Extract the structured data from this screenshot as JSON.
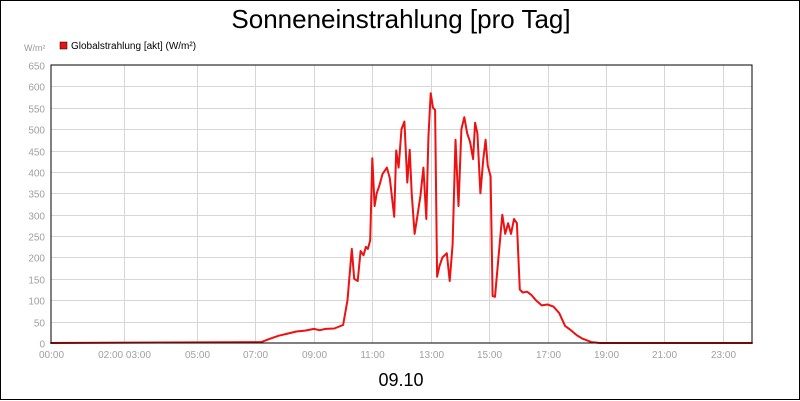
{
  "chart_data": {
    "type": "line",
    "title": "Sonneneinstrahlung [pro Tag]",
    "ylabel": "W/m²",
    "xlabel": "09.10",
    "ylim": [
      0,
      650
    ],
    "xlim": [
      0,
      24
    ],
    "yticks": [
      0,
      50,
      100,
      150,
      200,
      250,
      300,
      350,
      400,
      450,
      500,
      550,
      600,
      650
    ],
    "xticks": [
      {
        "x": 0,
        "label": "00:00"
      },
      {
        "x": 2.5,
        "label": "02:00 03:00"
      },
      {
        "x": 5,
        "label": "05:00"
      },
      {
        "x": 7,
        "label": "07:00"
      },
      {
        "x": 9,
        "label": "09:00"
      },
      {
        "x": 11,
        "label": "11:00"
      },
      {
        "x": 13,
        "label": "13:00"
      },
      {
        "x": 15,
        "label": "15:00"
      },
      {
        "x": 17,
        "label": "17:00"
      },
      {
        "x": 19,
        "label": "19:00"
      },
      {
        "x": 21,
        "label": "21:00"
      },
      {
        "x": 23,
        "label": "23:00"
      }
    ],
    "grid": true,
    "legend_position": "top-left",
    "series": [
      {
        "name": "Globalstrahlung [akt] (W/m²)",
        "color": "#ee1111",
        "x": [
          0,
          7.2,
          7.5,
          7.8,
          8.1,
          8.4,
          8.7,
          9.0,
          9.2,
          9.4,
          9.7,
          10.0,
          10.15,
          10.3,
          10.38,
          10.5,
          10.6,
          10.7,
          10.78,
          10.85,
          10.93,
          11.0,
          11.08,
          11.15,
          11.25,
          11.35,
          11.5,
          11.6,
          11.75,
          11.82,
          11.9,
          12.0,
          12.1,
          12.2,
          12.28,
          12.35,
          12.45,
          12.55,
          12.65,
          12.75,
          12.85,
          12.92,
          13.0,
          13.08,
          13.15,
          13.22,
          13.3,
          13.4,
          13.55,
          13.65,
          13.75,
          13.85,
          13.95,
          14.05,
          14.15,
          14.25,
          14.35,
          14.45,
          14.52,
          14.6,
          14.7,
          14.8,
          14.88,
          14.95,
          15.05,
          15.12,
          15.2,
          15.3,
          15.45,
          15.55,
          15.65,
          15.75,
          15.85,
          15.95,
          16.05,
          16.15,
          16.3,
          16.45,
          16.6,
          16.8,
          17.0,
          17.2,
          17.4,
          17.6,
          17.8,
          18.0,
          18.2,
          18.5,
          18.8,
          19.0,
          24
        ],
        "values": [
          0,
          2,
          10,
          17,
          22,
          27,
          29,
          33,
          30,
          33,
          34,
          42,
          100,
          220,
          150,
          145,
          215,
          205,
          225,
          220,
          240,
          432,
          320,
          350,
          370,
          395,
          410,
          385,
          295,
          450,
          410,
          500,
          518,
          375,
          452,
          350,
          255,
          300,
          345,
          410,
          290,
          480,
          584,
          550,
          545,
          155,
          180,
          200,
          210,
          145,
          230,
          475,
          320,
          500,
          528,
          490,
          470,
          430,
          515,
          490,
          350,
          430,
          475,
          415,
          390,
          110,
          108,
          185,
          300,
          255,
          280,
          255,
          290,
          280,
          125,
          118,
          120,
          112,
          100,
          88,
          90,
          85,
          70,
          40,
          30,
          18,
          10,
          2,
          0,
          0,
          0
        ]
      }
    ]
  }
}
